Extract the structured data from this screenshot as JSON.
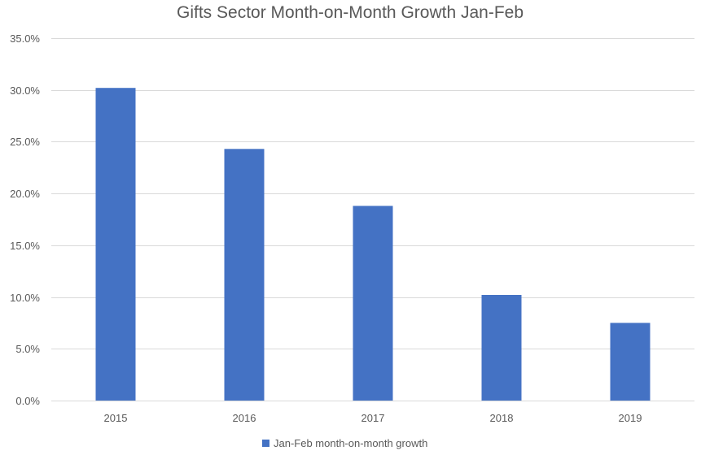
{
  "chart_data": {
    "type": "bar",
    "title": "Gifts Sector Month-on-Month Growth Jan-Feb",
    "xlabel": "",
    "ylabel": "",
    "categories": [
      "2015",
      "2016",
      "2017",
      "2018",
      "2019"
    ],
    "series": [
      {
        "name": "Jan-Feb month-on-month growth",
        "values": [
          30.2,
          24.3,
          18.8,
          10.2,
          7.5
        ],
        "color": "#4472C4"
      }
    ],
    "ylim": [
      0,
      35
    ],
    "y_ticks": [
      "0.0%",
      "5.0%",
      "10.0%",
      "15.0%",
      "20.0%",
      "25.0%",
      "30.0%",
      "35.0%"
    ],
    "y_unit": "%",
    "grid": true,
    "gridline_color": "#D9D9D9",
    "legend_position": "bottom"
  }
}
